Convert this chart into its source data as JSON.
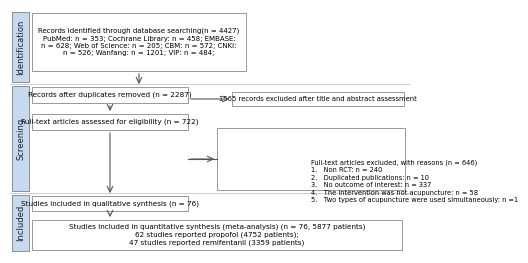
{
  "box1_text": "Records identified through database searching(n = 4427)\nPubMed: n = 353; Cochrane Library: n = 458; EMBASE:\nn = 628; Web of Science: n = 205; CBM: n = 572; CNKI:\nn = 526; Wanfang: n = 1201; VIP: n = 484;",
  "box2_text": "Records after duplicates removed (n = 2287)",
  "box3_text": "Full-text articles assessed for eligibility (n = 722)",
  "box4_text": "Studies included in qualitative synthesis (n = 76)",
  "box5_text": "Studies included in quantitative synthesis (meta-analysis) (n = 76, 5877 patients)\n62 studies reported propofol (4752 patients);\n47 studies reported remifentanil (3359 patients)",
  "side1_text": "1565 records excluded after title and abstract assessment",
  "side2_text": "Full-text articles excluded, with reasons (n = 646)\n1.   Non RCT: n = 240\n2.   Duplicated publications: n = 10\n3.   No outcome of interest: n = 337\n4.   The intervention was not acupuncture: n = 58\n5.   Two types of acupuncture were used simultaneously: n =1",
  "box_facecolor": "#ffffff",
  "box_edgecolor": "#888888",
  "sidebar_facecolor": "#c5d9f1",
  "sidebar_edgecolor": "#7f7f7f",
  "sep_color": "#bbbbbb",
  "arrow_color": "#555555",
  "fontsize": 5.2,
  "sidebar_fontsize": 6.0
}
